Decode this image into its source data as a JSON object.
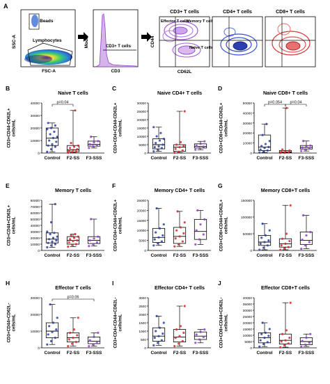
{
  "colors": {
    "control": "#2b3f9e",
    "f2": "#d42a2a",
    "f3": "#8e3fc9",
    "axis": "#000000",
    "flow_blue": "#3a4fd0",
    "flow_red": "#d83030",
    "flow_purple": "#9b4fd6",
    "flow_green": "#3cc45a",
    "flow_yellow": "#e8e23a",
    "flow_dark_blue": "#1b2a7a"
  },
  "panel_a": {
    "letter": "A",
    "plot1": {
      "gate_beads": "Beads",
      "gate_lymph": "Lymphocytes",
      "ylabel": "SSC-A",
      "xlabel": "FSC-A"
    },
    "plot2": {
      "gate_label": "CD3+ T cells",
      "ylabel": "Modal",
      "xlabel": "CD3"
    },
    "plot3": {
      "title": "CD3+ T cells",
      "q_effector": "Effector T cells",
      "q_memory": "Memory T cells",
      "q_naive": "Naive T cells",
      "ylabel": "CD44",
      "xlabel": "CD62L"
    },
    "plot4": {
      "title": "CD4+ T cells"
    },
    "plot5": {
      "title": "CD8+ T cells"
    }
  },
  "chart_data": [
    {
      "type": "box",
      "letter": "B",
      "title": "Naive T cells",
      "ylabel": "CD3+CD44-CD62L+\ncells/mL",
      "categories": [
        "Control",
        "F2-SS",
        "F3-SSS"
      ],
      "ylim": [
        0,
        40000
      ],
      "yticks": [
        0,
        10000,
        20000,
        30000,
        40000
      ],
      "boxes": [
        {
          "min": 1000,
          "q1": 6000,
          "median": 12000,
          "q3": 20000,
          "max": 24000,
          "points": [
            1000,
            3000,
            5000,
            6000,
            7000,
            9000,
            10000,
            12000,
            13000,
            15000,
            17000,
            19000,
            20000,
            22000,
            24000
          ]
        },
        {
          "min": 300,
          "q1": 1000,
          "median": 2500,
          "q3": 6000,
          "max": 34000,
          "points": [
            300,
            800,
            1200,
            1800,
            2500,
            3000,
            4000,
            5000,
            6000,
            8000,
            34000
          ]
        },
        {
          "min": 4000,
          "q1": 5500,
          "median": 7000,
          "q3": 9500,
          "max": 13000,
          "points": [
            4000,
            5500,
            6500,
            7000,
            8500,
            9500,
            13000
          ]
        }
      ],
      "annotations": [
        {
          "text": "p=0.04",
          "from": 0,
          "to": 1
        }
      ]
    },
    {
      "type": "box",
      "letter": "C",
      "title": "Naive CD4+ T cells",
      "ylabel": "CD3+CD4+CD44-CD62L+\ncells/mL",
      "categories": [
        "Control",
        "F2-SS",
        "F3-SSS"
      ],
      "ylim": [
        0,
        30000
      ],
      "yticks": [
        0,
        5000,
        10000,
        15000,
        20000,
        25000,
        30000
      ],
      "boxes": [
        {
          "min": 1000,
          "q1": 2500,
          "median": 5000,
          "q3": 8500,
          "max": 15500,
          "points": [
            1000,
            2000,
            3000,
            3500,
            4000,
            5000,
            6000,
            7500,
            8500,
            10000,
            12000,
            15500
          ]
        },
        {
          "min": 200,
          "q1": 1000,
          "median": 3500,
          "q3": 5000,
          "max": 25000,
          "points": [
            200,
            800,
            1500,
            2500,
            3500,
            4200,
            5000,
            6500,
            25000
          ]
        },
        {
          "min": 2000,
          "q1": 3000,
          "median": 4000,
          "q3": 5500,
          "max": 7000,
          "points": [
            2000,
            3000,
            3800,
            4500,
            5500,
            7000
          ]
        }
      ],
      "annotations": []
    },
    {
      "type": "box",
      "letter": "D",
      "title": "Naive CD8+ T cells",
      "ylabel": "CD3+CD8+CD44-CD62L+\ncells/mL",
      "categories": [
        "Control",
        "F2-SS",
        "F3-SSS"
      ],
      "ylim": [
        0,
        50000
      ],
      "yticks": [
        0,
        10000,
        20000,
        30000,
        40000,
        50000
      ],
      "boxes": [
        {
          "min": 500,
          "q1": 2500,
          "median": 6000,
          "q3": 18000,
          "max": 29000,
          "points": [
            500,
            1500,
            2500,
            3500,
            5000,
            6000,
            7000,
            9000,
            12000,
            18000,
            29000
          ]
        },
        {
          "min": 100,
          "q1": 500,
          "median": 1000,
          "q3": 2500,
          "max": 45000,
          "points": [
            100,
            300,
            600,
            1000,
            1500,
            2500,
            3500,
            45000
          ]
        },
        {
          "min": 2000,
          "q1": 4000,
          "median": 5500,
          "q3": 7500,
          "max": 12000,
          "points": [
            2000,
            3500,
            4500,
            5500,
            6500,
            7500,
            12000
          ]
        }
      ],
      "annotations": [
        {
          "text": "p=0.054",
          "from": 0,
          "to": 1
        },
        {
          "text": "p=0.04",
          "from": 1,
          "to": 2
        }
      ]
    },
    {
      "type": "box",
      "letter": "E",
      "title": "Memory T cells",
      "ylabel": "CD3+CD44+CD62L+\ncells/mL",
      "categories": [
        "Control",
        "F2-SS",
        "F3-SSS"
      ],
      "ylim": [
        0,
        80000
      ],
      "yticks": [
        0,
        10000,
        20000,
        30000,
        40000,
        50000,
        60000,
        70000,
        80000
      ],
      "boxes": [
        {
          "min": 5000,
          "q1": 12000,
          "median": 18000,
          "q3": 28000,
          "max": 74000,
          "points": [
            5000,
            8000,
            10000,
            12000,
            14000,
            16000,
            18000,
            20000,
            22000,
            26000,
            28000,
            30000,
            45000,
            74000
          ]
        },
        {
          "min": 6000,
          "q1": 10000,
          "median": 16000,
          "q3": 22000,
          "max": 26000,
          "points": [
            6000,
            9000,
            10000,
            13000,
            15000,
            16000,
            18000,
            20000,
            22000,
            24000,
            26000
          ]
        },
        {
          "min": 7000,
          "q1": 11000,
          "median": 16000,
          "q3": 22000,
          "max": 50000,
          "points": [
            7000,
            10000,
            13000,
            16000,
            19000,
            22000,
            50000
          ]
        }
      ],
      "annotations": []
    },
    {
      "type": "box",
      "letter": "F",
      "title": "Memory CD4+ T cells",
      "ylabel": "CD3+CD4+CD44+CD62L+\ncells/mL",
      "categories": [
        "Control",
        "F2-SS",
        "F3-SSS"
      ],
      "ylim": [
        0,
        25000
      ],
      "yticks": [
        0,
        5000,
        10000,
        15000,
        20000,
        25000
      ],
      "boxes": [
        {
          "min": 2500,
          "q1": 4000,
          "median": 6500,
          "q3": 11000,
          "max": 21000,
          "points": [
            2500,
            3500,
            4500,
            5500,
            6500,
            7500,
            9000,
            11000,
            13000,
            21000
          ]
        },
        {
          "min": 2000,
          "q1": 3500,
          "median": 7000,
          "q3": 11500,
          "max": 19500,
          "points": [
            2000,
            3000,
            4500,
            6000,
            7000,
            8500,
            10000,
            11500,
            14000,
            19500
          ]
        },
        {
          "min": 3000,
          "q1": 5500,
          "median": 9500,
          "q3": 15500,
          "max": 20000,
          "points": [
            3000,
            5500,
            8000,
            10000,
            13000,
            15500,
            20000
          ]
        }
      ],
      "annotations": []
    },
    {
      "type": "box",
      "letter": "G",
      "title": "Memory CD8+T cells",
      "ylabel": "CD3+CD8+CD44+CD62L+\ncells/mL",
      "categories": [
        "Control",
        "F2-SS",
        "F3-SSS"
      ],
      "ylim": [
        0,
        150000
      ],
      "yticks": [
        0,
        50000,
        100000,
        150000
      ],
      "boxes": [
        {
          "min": 2000,
          "q1": 15000,
          "median": 25000,
          "q3": 45000,
          "max": 80000,
          "points": [
            2000,
            8000,
            15000,
            20000,
            25000,
            30000,
            38000,
            45000,
            60000,
            80000
          ]
        },
        {
          "min": 2000,
          "q1": 10000,
          "median": 20000,
          "q3": 35000,
          "max": 135000,
          "points": [
            2000,
            6000,
            10000,
            15000,
            20000,
            28000,
            35000,
            50000,
            135000
          ]
        },
        {
          "min": 5000,
          "q1": 18000,
          "median": 30000,
          "q3": 55000,
          "max": 105000,
          "points": [
            5000,
            15000,
            25000,
            32000,
            45000,
            55000,
            105000
          ]
        }
      ],
      "annotations": []
    },
    {
      "type": "box",
      "letter": "H",
      "title": "Effector T cells",
      "ylabel": "CD3+CD44+CD62L-\ncells/mL",
      "categories": [
        "Control",
        "F2-SS",
        "F3-SSS"
      ],
      "ylim": [
        0,
        30000
      ],
      "yticks": [
        0,
        10000,
        20000,
        30000
      ],
      "boxes": [
        {
          "min": 2000,
          "q1": 6000,
          "median": 10000,
          "q3": 15000,
          "max": 26000,
          "points": [
            2000,
            4000,
            6000,
            8000,
            9500,
            11000,
            13000,
            15000,
            18000,
            26000
          ]
        },
        {
          "min": 1000,
          "q1": 3500,
          "median": 6000,
          "q3": 9000,
          "max": 18000,
          "points": [
            1000,
            2500,
            3500,
            5000,
            6000,
            7500,
            9000,
            11000,
            18000
          ]
        },
        {
          "min": 1000,
          "q1": 2500,
          "median": 4000,
          "q3": 6500,
          "max": 9000,
          "points": [
            1000,
            2000,
            3000,
            4500,
            6500,
            9000
          ]
        }
      ],
      "annotations": [
        {
          "text": "p=0.06",
          "from": 0,
          "to": 2
        }
      ]
    },
    {
      "type": "box",
      "letter": "I",
      "title": "Effector CD4+ T cells",
      "ylabel": "CD3+CD4+CD44+CD62L-\ncells/mL",
      "categories": [
        "Control",
        "F2-SS",
        "F3-SSS"
      ],
      "ylim": [
        0,
        3000
      ],
      "yticks": [
        0,
        500,
        1000,
        1500,
        2000,
        2500,
        3000
      ],
      "boxes": [
        {
          "min": 150,
          "q1": 400,
          "median": 700,
          "q3": 1200,
          "max": 1900,
          "points": [
            150,
            300,
            450,
            600,
            700,
            850,
            1000,
            1200,
            1500,
            1900
          ]
        },
        {
          "min": 100,
          "q1": 350,
          "median": 650,
          "q3": 1100,
          "max": 2500,
          "points": [
            100,
            250,
            400,
            600,
            700,
            900,
            1100,
            1300,
            2500
          ]
        },
        {
          "min": 300,
          "q1": 500,
          "median": 700,
          "q3": 950,
          "max": 1100,
          "points": [
            300,
            500,
            650,
            800,
            950,
            1100
          ]
        }
      ],
      "annotations": []
    },
    {
      "type": "box",
      "letter": "J",
      "title": "Effector CD8+T cells",
      "ylabel": "CD3+CD8+CD44+CD62L-\ncells/mL",
      "categories": [
        "Control",
        "F2-SS",
        "F3-SSS"
      ],
      "ylim": [
        0,
        40000
      ],
      "yticks": [
        0,
        5000,
        10000,
        15000,
        20000,
        25000,
        30000,
        35000,
        40000
      ],
      "boxes": [
        {
          "min": 1000,
          "q1": 4000,
          "median": 8000,
          "q3": 12000,
          "max": 20000,
          "points": [
            1000,
            3000,
            4500,
            6000,
            8000,
            9500,
            11000,
            12000,
            15000,
            20000
          ]
        },
        {
          "min": 500,
          "q1": 3000,
          "median": 6000,
          "q3": 11000,
          "max": 36000,
          "points": [
            500,
            2000,
            3500,
            5000,
            6000,
            8000,
            11000,
            14000,
            36000
          ]
        },
        {
          "min": 1000,
          "q1": 2500,
          "median": 5000,
          "q3": 8000,
          "max": 11000,
          "points": [
            1000,
            2500,
            4000,
            5500,
            8000,
            11000
          ]
        }
      ],
      "annotations": []
    }
  ]
}
